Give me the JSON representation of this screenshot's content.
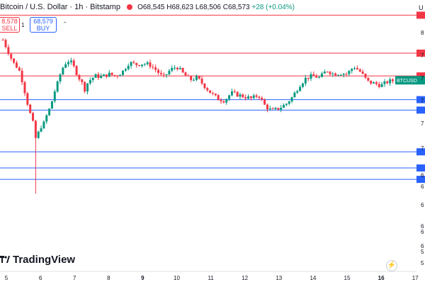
{
  "header": {
    "symbol_title": "Bitcoin / U.S. Dollar · 1h · Bitstamp",
    "ohlc": {
      "o_label": "O",
      "o": "68,545",
      "h_label": "H",
      "h": "68,623",
      "l_label": "L",
      "l": "68,506",
      "c_label": "C",
      "c": "68,573",
      "change": "+28 (+0.04%)"
    },
    "right_edge_label": "U"
  },
  "trade": {
    "sell_price": "8,578",
    "sell_label": "SELL",
    "spread": "1",
    "buy_price": "68,579",
    "buy_label": "BUY",
    "collapse_icon": "chevron-up-icon"
  },
  "logo": {
    "text": "TradingView",
    "icon": "tradingview-logo-icon"
  },
  "replay_icon": "lightning-icon",
  "colors": {
    "up": "#089981",
    "down": "#f23645",
    "resistance": "#f23645",
    "support": "#2962ff",
    "price_tag": "#089981"
  },
  "chart_data": {
    "type": "candlestick",
    "symbol": "BTCUSD",
    "x_tick_labels": [
      "5",
      "6",
      "7",
      "8",
      "9",
      "10",
      "11",
      "12",
      "13",
      "14",
      "15",
      "16",
      "17"
    ],
    "bold_x_ticks": [
      "9",
      "16"
    ],
    "ylim": [
      58500,
      72800
    ],
    "price_axis_partial_labels": [
      "8",
      "7",
      "7",
      "7",
      "7",
      "7",
      "6",
      "6",
      "6",
      "6",
      "6",
      "6",
      "5",
      "5"
    ],
    "current_price": 68573,
    "price_tag_label": "BTCUSD",
    "horizontal_levels": [
      {
        "value": 72000,
        "color": "red"
      },
      {
        "value": 70000,
        "color": "red"
      },
      {
        "value": 68800,
        "color": "red"
      },
      {
        "value": 67550,
        "color": "blue"
      },
      {
        "value": 67000,
        "color": "blue"
      },
      {
        "value": 64800,
        "color": "blue"
      },
      {
        "value": 63950,
        "color": "blue"
      },
      {
        "value": 63350,
        "color": "blue"
      }
    ],
    "price_path": [
      [
        4.9,
        70700
      ],
      [
        5.0,
        70300
      ],
      [
        5.1,
        69900
      ],
      [
        5.2,
        69500
      ],
      [
        5.3,
        69300
      ],
      [
        5.4,
        69000
      ],
      [
        5.5,
        68300
      ],
      [
        5.6,
        67500
      ],
      [
        5.7,
        66800
      ],
      [
        5.8,
        66200
      ],
      [
        5.85,
        65500
      ],
      [
        5.9,
        65600
      ],
      [
        6.0,
        66100
      ],
      [
        6.1,
        66300
      ],
      [
        6.2,
        66800
      ],
      [
        6.3,
        67200
      ],
      [
        6.4,
        67900
      ],
      [
        6.5,
        68400
      ],
      [
        6.6,
        69000
      ],
      [
        6.7,
        69400
      ],
      [
        6.8,
        69600
      ],
      [
        6.9,
        69500
      ],
      [
        7.0,
        69200
      ],
      [
        7.1,
        68800
      ],
      [
        7.2,
        68500
      ],
      [
        7.3,
        68100
      ],
      [
        7.4,
        68500
      ],
      [
        7.6,
        68800
      ],
      [
        7.8,
        68750
      ],
      [
        8.0,
        68900
      ],
      [
        8.2,
        68800
      ],
      [
        8.4,
        69000
      ],
      [
        8.6,
        69500
      ],
      [
        8.8,
        69400
      ],
      [
        9.0,
        69450
      ],
      [
        9.2,
        69400
      ],
      [
        9.4,
        69100
      ],
      [
        9.6,
        68700
      ],
      [
        9.8,
        69100
      ],
      [
        10.0,
        69300
      ],
      [
        10.2,
        68900
      ],
      [
        10.4,
        68600
      ],
      [
        10.6,
        68700
      ],
      [
        10.8,
        68300
      ],
      [
        11.0,
        67900
      ],
      [
        11.2,
        67600
      ],
      [
        11.4,
        67500
      ],
      [
        11.6,
        67900
      ],
      [
        11.8,
        67800
      ],
      [
        12.0,
        67700
      ],
      [
        12.2,
        67600
      ],
      [
        12.4,
        67800
      ],
      [
        12.6,
        67200
      ],
      [
        12.8,
        66950
      ],
      [
        13.0,
        67100
      ],
      [
        13.2,
        67300
      ],
      [
        13.4,
        67700
      ],
      [
        13.6,
        68300
      ],
      [
        13.8,
        68700
      ],
      [
        14.0,
        68800
      ],
      [
        14.2,
        68700
      ],
      [
        14.4,
        69100
      ],
      [
        14.6,
        68900
      ],
      [
        14.8,
        68950
      ],
      [
        15.0,
        68900
      ],
      [
        15.2,
        69300
      ],
      [
        15.4,
        69000
      ],
      [
        15.6,
        68500
      ],
      [
        15.8,
        68400
      ],
      [
        16.0,
        68300
      ],
      [
        16.2,
        68500
      ],
      [
        16.4,
        68573
      ]
    ]
  }
}
